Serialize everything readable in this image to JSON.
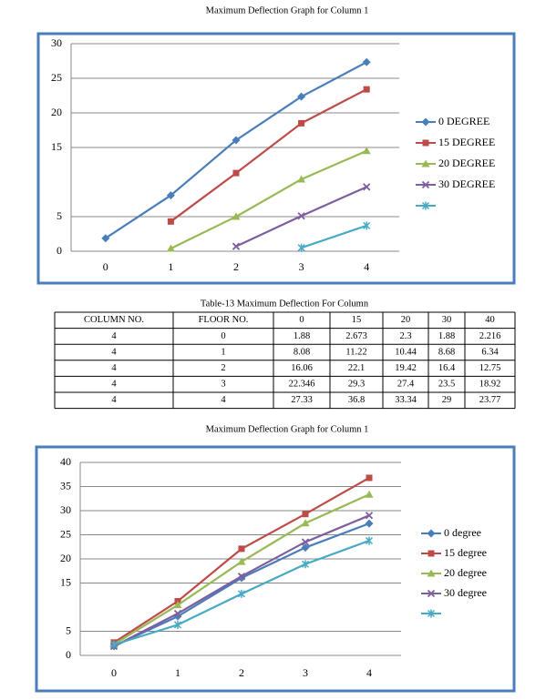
{
  "chart_data": [
    {
      "type": "line",
      "title": "Maximum Deflection Graph for Column 1",
      "categories": [
        "0",
        "1",
        "2",
        "3",
        "4"
      ],
      "ylim": [
        0,
        30
      ],
      "yticks": [
        0,
        5,
        15,
        20,
        25,
        30
      ],
      "grid": true,
      "legend": "right",
      "series": [
        {
          "name": "0 DEGREE",
          "color": "#4a7ebb",
          "marker": "diamond",
          "values": [
            1.88,
            8.08,
            16.06,
            22.346,
            27.33
          ]
        },
        {
          "name": "15 DEGREE",
          "color": "#be4b48",
          "marker": "square",
          "values": [
            null,
            4.3,
            11.3,
            18.5,
            23.4
          ]
        },
        {
          "name": "20 DEGREE",
          "color": "#98b954",
          "marker": "triangle",
          "values": [
            null,
            0.4,
            5,
            10.4,
            14.5
          ]
        },
        {
          "name": "30 DEGREE",
          "color": "#7d5fa0",
          "marker": "x",
          "values": [
            null,
            null,
            0.7,
            5.1,
            9.3
          ]
        },
        {
          "color": "#46aac5",
          "marker": "star",
          "values": [
            null,
            null,
            null,
            0.5,
            3.7
          ]
        }
      ]
    },
    {
      "type": "line",
      "title": "Maximum Deflection Graph for Column 1",
      "categories": [
        "0",
        "1",
        "2",
        "3",
        "4"
      ],
      "ylim": [
        0,
        40
      ],
      "yticks": [
        0,
        5,
        15,
        20,
        25,
        30,
        35,
        40
      ],
      "grid": true,
      "legend": "right",
      "series": [
        {
          "name": "0 degree",
          "color": "#4a7ebb",
          "marker": "diamond",
          "values": [
            1.88,
            8.08,
            16.06,
            22.346,
            27.33
          ]
        },
        {
          "name": "15 degree",
          "color": "#be4b48",
          "marker": "square",
          "values": [
            2.673,
            11.22,
            22.1,
            29.3,
            36.8
          ]
        },
        {
          "name": "20 degree",
          "color": "#98b954",
          "marker": "triangle",
          "values": [
            2.3,
            10.44,
            19.42,
            27.4,
            33.34
          ]
        },
        {
          "name": "30 degree",
          "color": "#7d5fa0",
          "marker": "x",
          "values": [
            1.88,
            8.68,
            16.4,
            23.5,
            29
          ]
        },
        {
          "color": "#46aac5",
          "marker": "star",
          "values": [
            2.216,
            6.34,
            12.75,
            18.92,
            23.77
          ]
        }
      ]
    }
  ],
  "table": {
    "caption": "Table-13 Maximum Deflection For Column",
    "header": [
      "COLUMN NO.",
      "FLOOR NO.",
      "0",
      "15",
      "20",
      "30",
      "40"
    ],
    "rows": [
      [
        "4",
        "0",
        "1.88",
        "2.673",
        "2.3",
        "1.88",
        "2.216"
      ],
      [
        "4",
        "1",
        "8.08",
        "11.22",
        "10.44",
        "8.68",
        "6.34"
      ],
      [
        "4",
        "2",
        "16.06",
        "22.1",
        "19.42",
        "16.4",
        "12.75"
      ],
      [
        "4",
        "3",
        "22.346",
        "29.3",
        "27.4",
        "23.5",
        "18.92"
      ],
      [
        "4",
        "4",
        "27.33",
        "36.8",
        "33.34",
        "29",
        "23.77"
      ]
    ]
  }
}
